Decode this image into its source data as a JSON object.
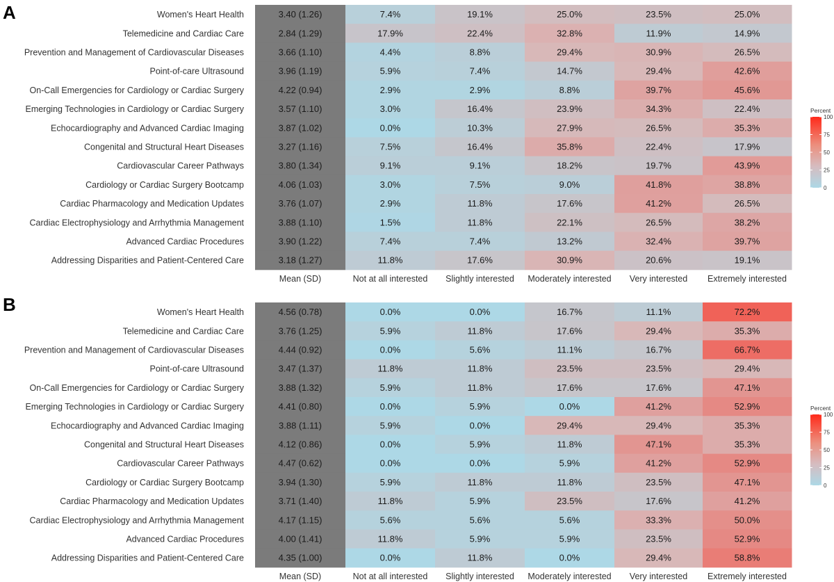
{
  "chart_data": [
    {
      "type": "heatmap",
      "panel_label": "A",
      "legend_title": "Percent",
      "legend_ticks": [
        "100",
        "75",
        "50",
        "25",
        "0"
      ],
      "legend_range": [
        0,
        100
      ],
      "columns": [
        "Mean (SD)",
        "Not at all interested",
        "Slightly interested",
        "Moderately interested",
        "Very interested",
        "Extremely interested"
      ],
      "rows": [
        {
          "topic": "Women's Heart Health",
          "mean_sd": "3.40 (1.26)",
          "values": [
            7.4,
            19.1,
            25.0,
            23.5,
            25.0
          ]
        },
        {
          "topic": "Telemedicine and Cardiac Care",
          "mean_sd": "2.84 (1.29)",
          "values": [
            17.9,
            22.4,
            32.8,
            11.9,
            14.9
          ]
        },
        {
          "topic": "Prevention and Management of Cardiovascular Diseases",
          "mean_sd": "3.66 (1.10)",
          "values": [
            4.4,
            8.8,
            29.4,
            30.9,
            26.5
          ]
        },
        {
          "topic": "Point-of-care Ultrasound",
          "mean_sd": "3.96 (1.19)",
          "values": [
            5.9,
            7.4,
            14.7,
            29.4,
            42.6
          ]
        },
        {
          "topic": "On-Call Emergencies for Cardiology or Cardiac Surgery",
          "mean_sd": "4.22 (0.94)",
          "values": [
            2.9,
            2.9,
            8.8,
            39.7,
            45.6
          ]
        },
        {
          "topic": "Emerging Technologies in Cardiology or Cardiac Surgery",
          "mean_sd": "3.57 (1.10)",
          "values": [
            3.0,
            16.4,
            23.9,
            34.3,
            22.4
          ]
        },
        {
          "topic": "Echocardiography and Advanced Cardiac Imaging",
          "mean_sd": "3.87 (1.02)",
          "values": [
            0.0,
            10.3,
            27.9,
            26.5,
            35.3
          ]
        },
        {
          "topic": "Congenital and Structural Heart Diseases",
          "mean_sd": "3.27 (1.16)",
          "values": [
            7.5,
            16.4,
            35.8,
            22.4,
            17.9
          ]
        },
        {
          "topic": "Cardiovascular Career Pathways",
          "mean_sd": "3.80 (1.34)",
          "values": [
            9.1,
            9.1,
            18.2,
            19.7,
            43.9
          ]
        },
        {
          "topic": "Cardiology or Cardiac Surgery Bootcamp",
          "mean_sd": "4.06 (1.03)",
          "values": [
            3.0,
            7.5,
            9.0,
            41.8,
            38.8
          ]
        },
        {
          "topic": "Cardiac Pharmacology and Medication Updates",
          "mean_sd": "3.76 (1.07)",
          "values": [
            2.9,
            11.8,
            17.6,
            41.2,
            26.5
          ]
        },
        {
          "topic": "Cardiac Electrophysiology and Arrhythmia Management",
          "mean_sd": "3.88 (1.10)",
          "values": [
            1.5,
            11.8,
            22.1,
            26.5,
            38.2
          ]
        },
        {
          "topic": "Advanced Cardiac Procedures",
          "mean_sd": "3.90 (1.22)",
          "values": [
            7.4,
            7.4,
            13.2,
            32.4,
            39.7
          ]
        },
        {
          "topic": "Addressing Disparities and Patient-Centered Care",
          "mean_sd": "3.18 (1.27)",
          "values": [
            11.8,
            17.6,
            30.9,
            20.6,
            19.1
          ]
        }
      ]
    },
    {
      "type": "heatmap",
      "panel_label": "B",
      "legend_title": "Percent",
      "legend_ticks": [
        "100",
        "75",
        "50",
        "25",
        "0"
      ],
      "legend_range": [
        0,
        100
      ],
      "columns": [
        "Mean (SD)",
        "Not at all interested",
        "Slightly interested",
        "Moderately interested",
        "Very interested",
        "Extremely interested"
      ],
      "rows": [
        {
          "topic": "Women's Heart Health",
          "mean_sd": "4.56 (0.78)",
          "values": [
            0.0,
            0.0,
            16.7,
            11.1,
            72.2
          ]
        },
        {
          "topic": "Telemedicine and Cardiac Care",
          "mean_sd": "3.76 (1.25)",
          "values": [
            5.9,
            11.8,
            17.6,
            29.4,
            35.3
          ]
        },
        {
          "topic": "Prevention and Management of Cardiovascular Diseases",
          "mean_sd": "4.44 (0.92)",
          "values": [
            0.0,
            5.6,
            11.1,
            16.7,
            66.7
          ]
        },
        {
          "topic": "Point-of-care Ultrasound",
          "mean_sd": "3.47 (1.37)",
          "values": [
            11.8,
            11.8,
            23.5,
            23.5,
            29.4
          ]
        },
        {
          "topic": "On-Call Emergencies for Cardiology or Cardiac Surgery",
          "mean_sd": "3.88 (1.32)",
          "values": [
            5.9,
            11.8,
            17.6,
            17.6,
            47.1
          ]
        },
        {
          "topic": "Emerging Technologies in Cardiology or Cardiac Surgery",
          "mean_sd": "4.41 (0.80)",
          "values": [
            0.0,
            5.9,
            0.0,
            41.2,
            52.9
          ]
        },
        {
          "topic": "Echocardiography and Advanced Cardiac Imaging",
          "mean_sd": "3.88 (1.11)",
          "values": [
            5.9,
            0.0,
            29.4,
            29.4,
            35.3
          ]
        },
        {
          "topic": "Congenital and Structural Heart Diseases",
          "mean_sd": "4.12 (0.86)",
          "values": [
            0.0,
            5.9,
            11.8,
            47.1,
            35.3
          ]
        },
        {
          "topic": "Cardiovascular Career Pathways",
          "mean_sd": "4.47 (0.62)",
          "values": [
            0.0,
            0.0,
            5.9,
            41.2,
            52.9
          ]
        },
        {
          "topic": "Cardiology or Cardiac Surgery Bootcamp",
          "mean_sd": "3.94 (1.30)",
          "values": [
            5.9,
            11.8,
            11.8,
            23.5,
            47.1
          ]
        },
        {
          "topic": "Cardiac Pharmacology and Medication Updates",
          "mean_sd": "3.71 (1.40)",
          "values": [
            11.8,
            5.9,
            23.5,
            17.6,
            41.2
          ]
        },
        {
          "topic": "Cardiac Electrophysiology and Arrhythmia Management",
          "mean_sd": "4.17 (1.15)",
          "values": [
            5.6,
            5.6,
            5.6,
            33.3,
            50.0
          ]
        },
        {
          "topic": "Advanced Cardiac Procedures",
          "mean_sd": "4.00 (1.41)",
          "values": [
            11.8,
            5.9,
            5.9,
            23.5,
            52.9
          ]
        },
        {
          "topic": "Addressing Disparities and Patient-Centered Care",
          "mean_sd": "4.35 (1.00)",
          "values": [
            0.0,
            11.8,
            0.0,
            29.4,
            58.8
          ]
        }
      ]
    }
  ],
  "colors": {
    "low": "#add8e6",
    "mid": "#d9b7b7",
    "high": "#ff2a1a",
    "mean_column": "#7b7b7b"
  }
}
